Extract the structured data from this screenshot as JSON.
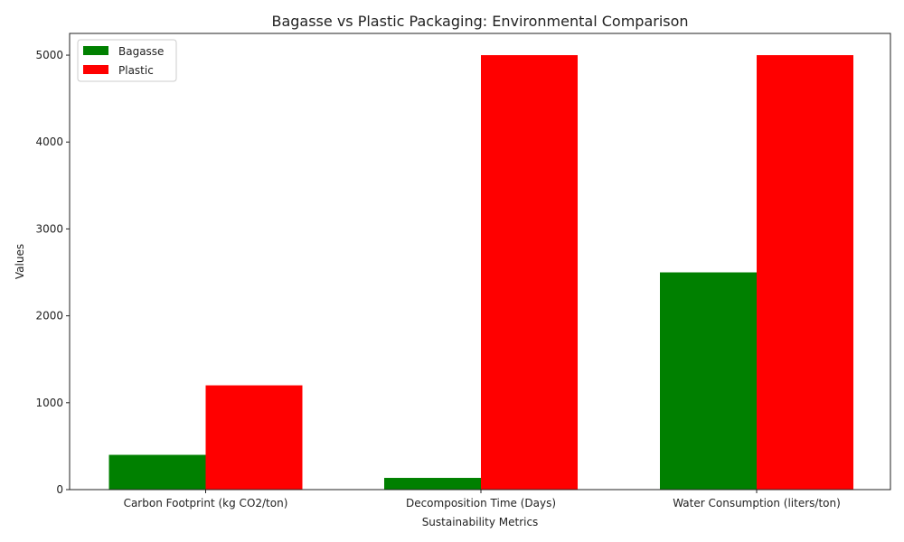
{
  "chart_data": {
    "type": "bar",
    "title": "Bagasse vs Plastic Packaging: Environmental Comparison",
    "xlabel": "Sustainability Metrics",
    "ylabel": "Values",
    "categories": [
      "Carbon Footprint (kg CO2/ton)",
      "Decomposition Time (Days)",
      "Water Consumption (liters/ton)"
    ],
    "series": [
      {
        "name": "Bagasse",
        "color": "#008000",
        "values": [
          400,
          135,
          2500
        ]
      },
      {
        "name": "Plastic",
        "color": "#ff0000",
        "values": [
          1200,
          5000,
          5000
        ]
      }
    ],
    "ylim": [
      0,
      5250
    ],
    "yticks": [
      0,
      1000,
      2000,
      3000,
      4000,
      5000
    ],
    "grid": false,
    "legend_position": "upper left"
  }
}
